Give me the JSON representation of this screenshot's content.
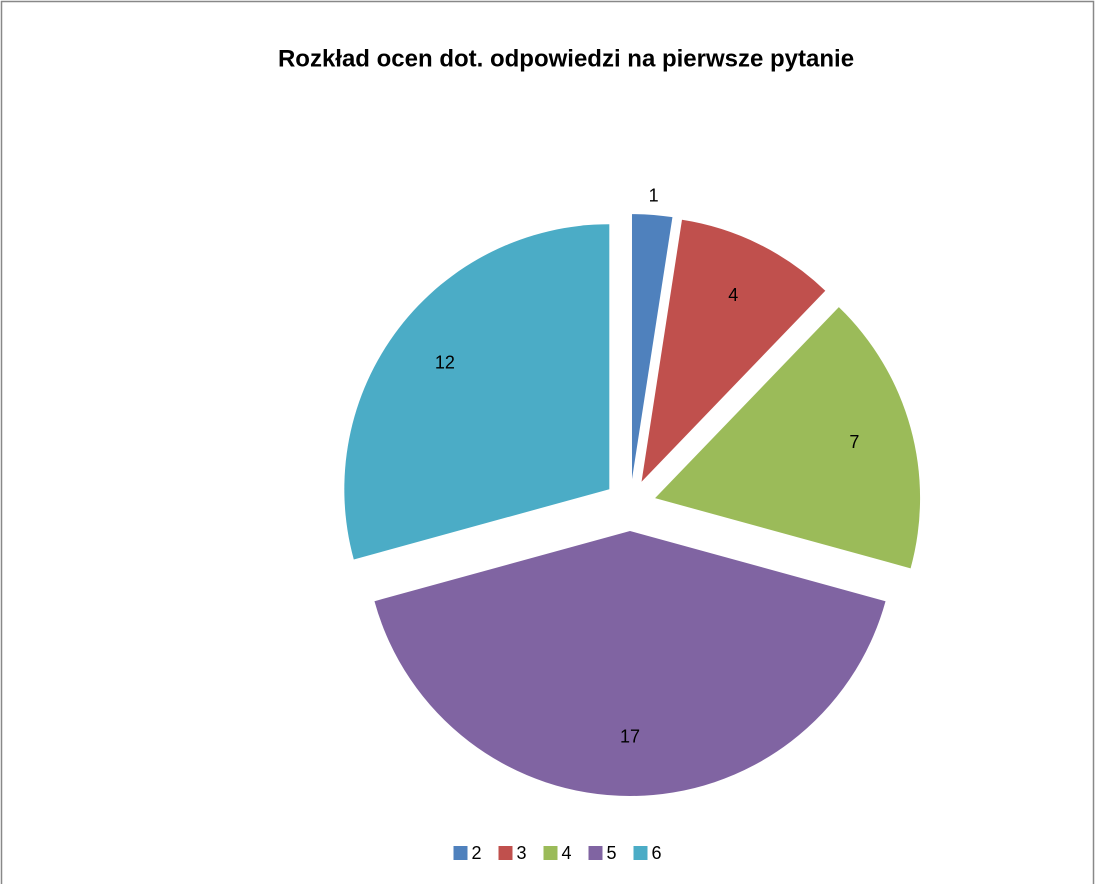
{
  "chart_data": {
    "type": "pie",
    "title": "Rozkład ocen dot.  odpowiedzi na pierwsze pytanie",
    "categories": [
      "2",
      "3",
      "4",
      "5",
      "6"
    ],
    "values": [
      1,
      4,
      7,
      17,
      12
    ],
    "colors": [
      "#4f81bd",
      "#c0504d",
      "#9bbb59",
      "#8064a2",
      "#4bacc6"
    ],
    "legend": "bottom"
  }
}
